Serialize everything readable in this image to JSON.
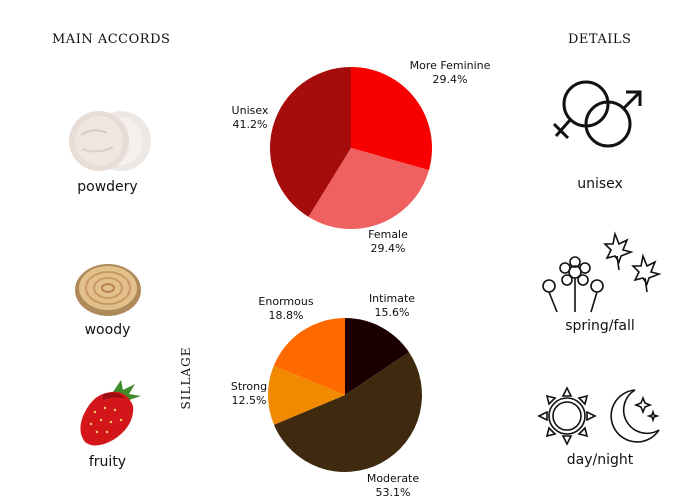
{
  "headers": {
    "main_accords": "MAIN ACCORDS",
    "details": "DETAILS"
  },
  "accords": [
    {
      "label": "powdery",
      "icon": "powder-icon"
    },
    {
      "label": "woody",
      "icon": "wood-slice-icon"
    },
    {
      "label": "fruity",
      "icon": "strawberry-icon"
    }
  ],
  "details": [
    {
      "label": "unisex",
      "icon": "gender-symbols-icon"
    },
    {
      "label": "spring/fall",
      "icon": "flowers-leaves-icon"
    },
    {
      "label": "day/night",
      "icon": "sun-moon-icon"
    }
  ],
  "chart_data": [
    {
      "type": "pie",
      "categories": [
        "More Feminine",
        "Female",
        "Unisex"
      ],
      "values": [
        29.4,
        29.4,
        41.2
      ],
      "labels": [
        "29.4%",
        "29.4%",
        "41.2%"
      ],
      "colors": [
        "#f80000",
        "#ef6060",
        "#a60c0c"
      ]
    },
    {
      "type": "pie",
      "title": "SILLAGE",
      "categories": [
        "Intimate",
        "Moderate",
        "Strong",
        "Enormous"
      ],
      "values": [
        15.6,
        53.1,
        12.5,
        18.8
      ],
      "labels": [
        "15.6%",
        "53.1%",
        "12.5%",
        "18.8%"
      ],
      "colors": [
        "#1c0000",
        "#3f2a0f",
        "#f18a00",
        "#ff6a00"
      ]
    }
  ]
}
